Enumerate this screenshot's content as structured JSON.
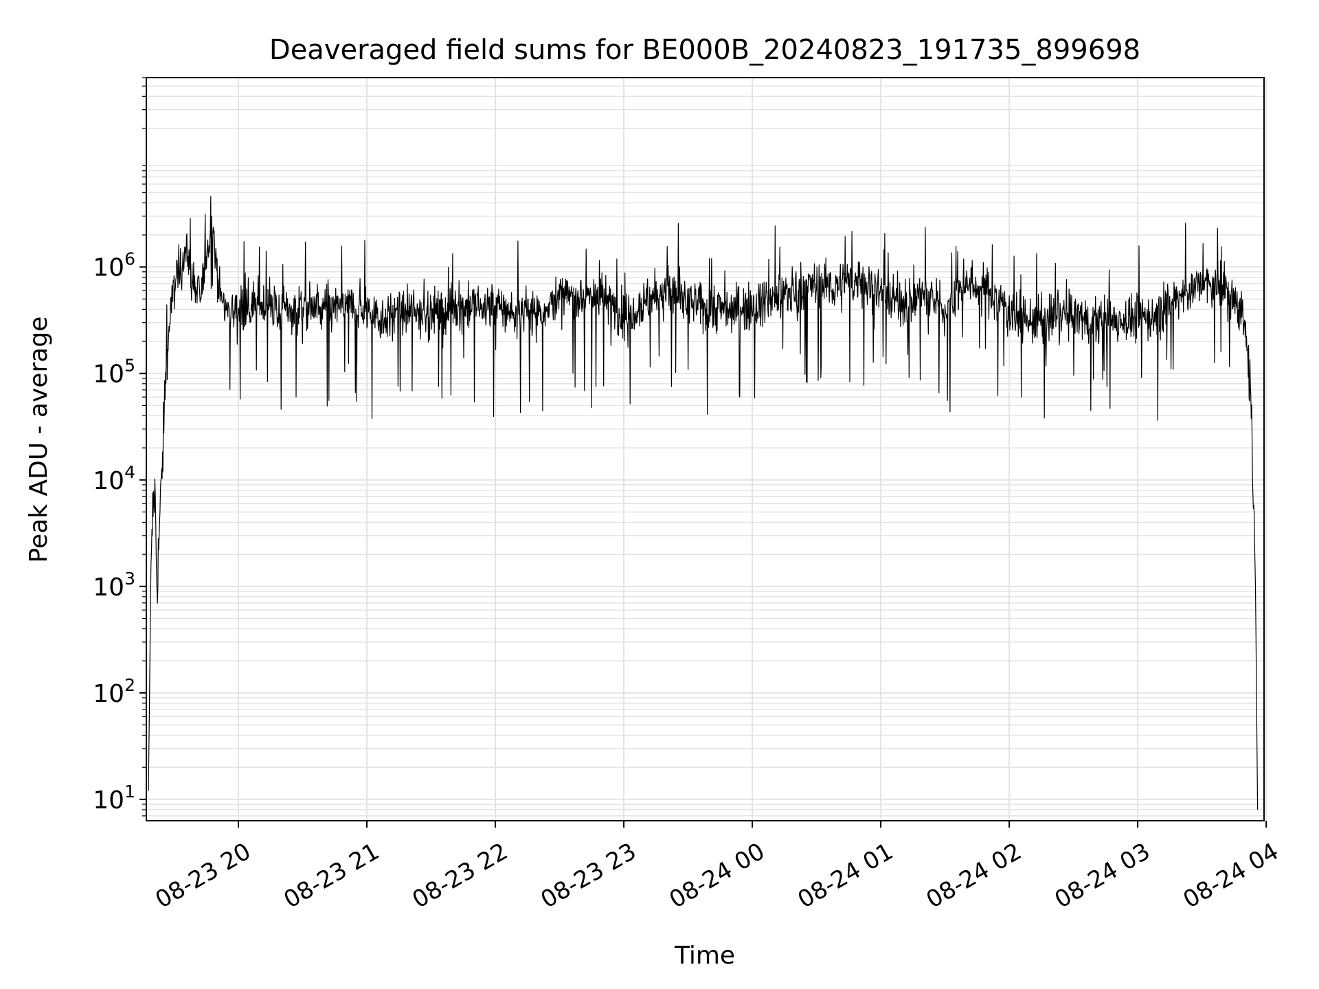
{
  "chart_data": {
    "type": "line",
    "title": "Deaveraged field sums for BE000B_20240823_191735_899698",
    "xlabel": "Time",
    "ylabel": "Peak ADU - average",
    "yscale": "log",
    "ylim": [
      6.3,
      60000000
    ],
    "xlim": [
      "2024-08-23 19:17",
      "2024-08-24 03:59"
    ],
    "grid": true,
    "line_color": "#000000",
    "grid_color": "#e3e3e3",
    "x_ticks": [
      {
        "value": "2024-08-23 20:00",
        "label": "08-23 20"
      },
      {
        "value": "2024-08-23 21:00",
        "label": "08-23 21"
      },
      {
        "value": "2024-08-23 22:00",
        "label": "08-23 22"
      },
      {
        "value": "2024-08-23 23:00",
        "label": "08-23 23"
      },
      {
        "value": "2024-08-24 00:00",
        "label": "08-24 00"
      },
      {
        "value": "2024-08-24 01:00",
        "label": "08-24 01"
      },
      {
        "value": "2024-08-24 02:00",
        "label": "08-24 02"
      },
      {
        "value": "2024-08-24 03:00",
        "label": "08-24 03"
      },
      {
        "value": "2024-08-24 04:00",
        "label": "08-24 04"
      }
    ],
    "y_ticks": [
      {
        "value": 10,
        "base": "10",
        "exp": "1"
      },
      {
        "value": 100,
        "base": "10",
        "exp": "2"
      },
      {
        "value": 1000,
        "base": "10",
        "exp": "3"
      },
      {
        "value": 10000,
        "base": "10",
        "exp": "4"
      },
      {
        "value": 100000,
        "base": "10",
        "exp": "5"
      },
      {
        "value": 1000000,
        "base": "10",
        "exp": "6"
      }
    ],
    "series": [
      {
        "x": [
          "2024-08-23 19:18",
          "2024-08-23 19:19",
          "2024-08-23 19:20",
          "2024-08-23 19:21",
          "2024-08-23 19:22",
          "2024-08-23 19:23",
          "2024-08-23 19:24",
          "2024-08-23 19:25",
          "2024-08-23 19:26",
          "2024-08-23 19:28",
          "2024-08-23 19:30",
          "2024-08-23 19:33",
          "2024-08-23 19:36",
          "2024-08-23 19:38",
          "2024-08-23 19:40",
          "2024-08-23 19:42",
          "2024-08-23 19:44",
          "2024-08-23 19:46",
          "2024-08-23 19:48",
          "2024-08-23 19:50",
          "2024-08-23 19:52",
          "2024-08-23 19:55",
          "2024-08-23 20:00",
          "2024-08-23 20:10",
          "2024-08-23 20:20",
          "2024-08-23 20:30",
          "2024-08-23 20:40",
          "2024-08-23 20:50",
          "2024-08-23 21:00",
          "2024-08-23 21:07",
          "2024-08-23 21:10",
          "2024-08-23 21:20",
          "2024-08-23 21:30",
          "2024-08-23 21:40",
          "2024-08-23 21:50",
          "2024-08-23 22:00",
          "2024-08-23 22:10",
          "2024-08-23 22:20",
          "2024-08-23 22:30",
          "2024-08-23 22:40",
          "2024-08-23 22:50",
          "2024-08-23 23:00",
          "2024-08-23 23:10",
          "2024-08-23 23:20",
          "2024-08-23 23:30",
          "2024-08-23 23:40",
          "2024-08-23 23:50",
          "2024-08-24 00:00",
          "2024-08-24 00:10",
          "2024-08-24 00:20",
          "2024-08-24 00:30",
          "2024-08-24 00:40",
          "2024-08-24 00:50",
          "2024-08-24 01:00",
          "2024-08-24 01:10",
          "2024-08-24 01:20",
          "2024-08-24 01:30",
          "2024-08-24 01:40",
          "2024-08-24 01:50",
          "2024-08-24 02:00",
          "2024-08-24 02:10",
          "2024-08-24 02:20",
          "2024-08-24 02:30",
          "2024-08-24 02:40",
          "2024-08-24 02:50",
          "2024-08-24 03:00",
          "2024-08-24 03:10",
          "2024-08-24 03:20",
          "2024-08-24 03:30",
          "2024-08-24 03:40",
          "2024-08-24 03:46",
          "2024-08-24 03:50",
          "2024-08-24 03:53",
          "2024-08-24 03:55",
          "2024-08-24 03:56"
        ],
        "y": [
          12,
          800,
          5000,
          8000,
          1000,
          3000,
          9000,
          25000,
          100000,
          300000,
          700000,
          1000000,
          1500000,
          800000,
          600000,
          500000,
          900000,
          1800000,
          2500000,
          1000000,
          500000,
          400000,
          400000,
          450000,
          380000,
          420000,
          400000,
          430000,
          400000,
          330000,
          350000,
          370000,
          380000,
          400000,
          420000,
          430000,
          360000,
          380000,
          500000,
          550000,
          520000,
          350000,
          480000,
          600000,
          450000,
          420000,
          400000,
          450000,
          500000,
          600000,
          700000,
          650000,
          750000,
          600000,
          450000,
          550000,
          400000,
          700000,
          600000,
          400000,
          300000,
          320000,
          350000,
          300000,
          320000,
          330000,
          350000,
          550000,
          700000,
          600000,
          500000,
          300000,
          50000,
          1000,
          8
        ]
      }
    ]
  }
}
